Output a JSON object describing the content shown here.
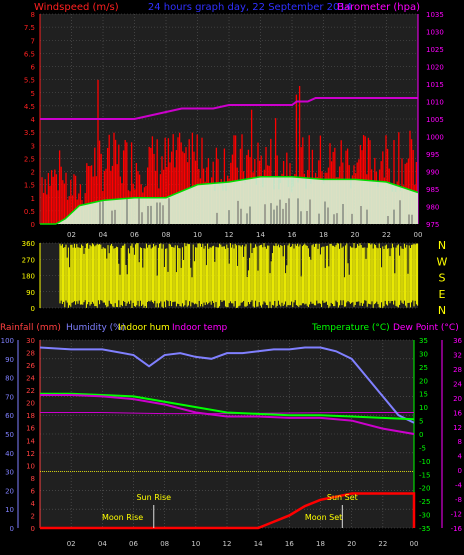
{
  "colors": {
    "background": "#000000",
    "panel_bg": "#202020",
    "grid": "#5a5a5a",
    "wind": "#ff0000",
    "windgust": "#ff0000",
    "wind_avg": "#00dd00",
    "wind_fill": "#d8f8d8",
    "barometer": "#cc00cc",
    "direction": "#ffff00",
    "humidity": "#8080ff",
    "rain": "#ff0000",
    "temperature": "#00ff00",
    "dewpoint": "#cc00cc",
    "indoor_temp": "#cc00cc",
    "indoor_hum": "#ffff00",
    "sun": "#ffff00",
    "rainfall_axis": "#ff4040",
    "humidity_axis": "#8080ff"
  },
  "header": {
    "windspeed_label": "Windspeed (m/s)",
    "graph_title": "24 hours graph day, 22 September 2014",
    "barometer_label": "Barometer (hpa)"
  },
  "legend_bottom": {
    "rainfall": "Rainfall (mm)",
    "humidity": "Humidity (%)",
    "indoor_hum": "Indoor hum",
    "indoor_temp": "Indoor temp",
    "temperature": "Temperature (°C)",
    "dewpoint": "Dew Point (°C)"
  },
  "compass": [
    "N",
    "W",
    "S",
    "E",
    "N"
  ],
  "annotations": {
    "sun_rise": "Sun Rise",
    "moon_rise": "Moon Rise",
    "sun_set": "Sun Set",
    "moon_set": "Moon Set"
  },
  "chart_data": [
    {
      "type": "line",
      "name": "wind_and_pressure",
      "x_ticks": [
        "02",
        "04",
        "06",
        "08",
        "10",
        "12",
        "14",
        "16",
        "18",
        "20",
        "22",
        "00"
      ],
      "y_left_ticks": [
        "0",
        "0.5",
        "1",
        "1.5",
        "2",
        "2.5",
        "3",
        "3.5",
        "4",
        "4.5",
        "5",
        "5.5",
        "6",
        "6.5",
        "7",
        "7.5",
        "8"
      ],
      "y_right_ticks": [
        "975",
        "980",
        "985",
        "990",
        "995",
        "1000",
        "1005",
        "1010",
        "1015",
        "1020",
        "1025",
        "1030",
        "1035"
      ],
      "ylim_left": [
        0,
        8
      ],
      "ylim_right": [
        975,
        1035
      ],
      "barometer": [
        [
          0,
          1005
        ],
        [
          2,
          1005
        ],
        [
          4,
          1005
        ],
        [
          6,
          1005
        ],
        [
          7,
          1006
        ],
        [
          8,
          1007
        ],
        [
          9,
          1008
        ],
        [
          10,
          1008
        ],
        [
          11,
          1008
        ],
        [
          12,
          1009
        ],
        [
          14,
          1009
        ],
        [
          16,
          1009
        ],
        [
          16.3,
          1010
        ],
        [
          17,
          1010
        ],
        [
          17.5,
          1011
        ],
        [
          18,
          1011
        ],
        [
          19,
          1011
        ],
        [
          19.8,
          1011
        ],
        [
          20,
          1011
        ],
        [
          21,
          1011
        ],
        [
          22,
          1011
        ],
        [
          23,
          1011
        ],
        [
          24,
          1011
        ]
      ],
      "wind_avg": [
        [
          0,
          0
        ],
        [
          1,
          0
        ],
        [
          1.6,
          0.2
        ],
        [
          2.5,
          0.7
        ],
        [
          4,
          0.9
        ],
        [
          6,
          1
        ],
        [
          8,
          1
        ],
        [
          10,
          1.5
        ],
        [
          12,
          1.6
        ],
        [
          14,
          1.8
        ],
        [
          16,
          1.8
        ],
        [
          18,
          1.7
        ],
        [
          20,
          1.7
        ],
        [
          22,
          1.6
        ],
        [
          23,
          1.4
        ],
        [
          24,
          1.2
        ]
      ]
    },
    {
      "type": "scatter",
      "name": "wind_direction",
      "y_ticks": [
        "0",
        "90",
        "180",
        "270",
        "360"
      ],
      "ylim": [
        0,
        360
      ],
      "x_ticks": [
        "02",
        "04",
        "06",
        "08",
        "10",
        "12",
        "14",
        "16",
        "18",
        "20",
        "22",
        "00"
      ]
    },
    {
      "type": "line",
      "name": "temperature_humidity_rain",
      "x_ticks": [
        "02",
        "04",
        "06",
        "08",
        "10",
        "12",
        "14",
        "16",
        "18",
        "20",
        "22",
        "00"
      ],
      "humidity_ticks": [
        "0",
        "10",
        "20",
        "30",
        "40",
        "50",
        "60",
        "70",
        "80",
        "90",
        "100"
      ],
      "rain_ticks": [
        "0",
        "2",
        "4",
        "6",
        "8",
        "10",
        "12",
        "14",
        "16",
        "18",
        "20",
        "22",
        "24",
        "26",
        "28",
        "30"
      ],
      "temp_ticks": [
        "-35",
        "-30",
        "-25",
        "-20",
        "-15",
        "-10",
        "-5",
        "0",
        "5",
        "10",
        "15",
        "20",
        "25",
        "30",
        "35"
      ],
      "indoor_ticks": [
        "-16",
        "-12",
        "-8",
        "-4",
        "0",
        "4",
        "8",
        "12",
        "16",
        "20",
        "24",
        "28",
        "32",
        "36"
      ],
      "humidity": [
        [
          0,
          96
        ],
        [
          2,
          95
        ],
        [
          4,
          95
        ],
        [
          6,
          92
        ],
        [
          7,
          86
        ],
        [
          7.5,
          89
        ],
        [
          8,
          92
        ],
        [
          9,
          93
        ],
        [
          10,
          91
        ],
        [
          11,
          90
        ],
        [
          12,
          93
        ],
        [
          13,
          93
        ],
        [
          14,
          94
        ],
        [
          15,
          95
        ],
        [
          16,
          95
        ],
        [
          17,
          96
        ],
        [
          18,
          96
        ],
        [
          19,
          94
        ],
        [
          20,
          90
        ],
        [
          21,
          80
        ],
        [
          22,
          70
        ],
        [
          23,
          60
        ],
        [
          24,
          56
        ]
      ],
      "temperature": [
        [
          0,
          15
        ],
        [
          2,
          15
        ],
        [
          4,
          14.5
        ],
        [
          6,
          14
        ],
        [
          8,
          12
        ],
        [
          10,
          10
        ],
        [
          12,
          8
        ],
        [
          14,
          7.5
        ],
        [
          16,
          7
        ],
        [
          18,
          7
        ],
        [
          20,
          6.5
        ],
        [
          22,
          6
        ],
        [
          24,
          5.5
        ]
      ],
      "dewpoint": [
        [
          0,
          14.5
        ],
        [
          2,
          14.5
        ],
        [
          4,
          14
        ],
        [
          6,
          13
        ],
        [
          8,
          11
        ],
        [
          10,
          8
        ],
        [
          12,
          6.5
        ],
        [
          14,
          6.5
        ],
        [
          16,
          6
        ],
        [
          18,
          6
        ],
        [
          20,
          5
        ],
        [
          22,
          2
        ],
        [
          24,
          0
        ]
      ],
      "indoor_temp": [
        [
          0,
          8
        ],
        [
          4,
          8
        ],
        [
          8,
          7.6
        ],
        [
          12,
          7.6
        ],
        [
          16,
          7.8
        ],
        [
          20,
          8
        ],
        [
          24,
          8
        ]
      ],
      "rain": [
        [
          0,
          0
        ],
        [
          14,
          0
        ],
        [
          15,
          1
        ],
        [
          16,
          2
        ],
        [
          17,
          3.5
        ],
        [
          18,
          4.5
        ],
        [
          19,
          5
        ],
        [
          20,
          5.5
        ],
        [
          24,
          5.5
        ],
        [
          24,
          0
        ]
      ],
      "events": {
        "sun_rise": 7.3,
        "moon_rise": 5.3,
        "sun_set": 19.4,
        "moon_set": 18.2
      }
    }
  ]
}
